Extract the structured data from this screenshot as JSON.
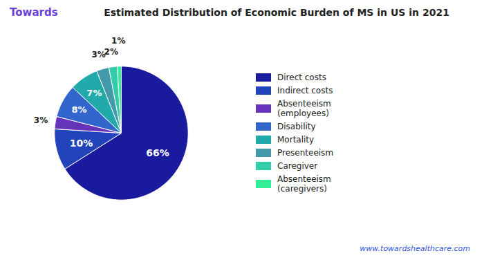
{
  "chart_data": {
    "type": "pie",
    "title": "Estimated Distribution of Economic Burden of MS in US in 2021",
    "categories": [
      "Direct costs",
      "Indirect costs",
      "Absenteeism\n(employees)",
      "Disability",
      "Mortality",
      "Presenteeism",
      "Caregiver",
      "Absenteeism\n(caregivers)"
    ],
    "values": [
      66,
      10,
      3,
      8,
      7,
      3,
      2,
      1
    ],
    "value_labels": [
      "66%",
      "10%",
      "3%",
      "8%",
      "7%",
      "3%",
      "2%",
      "1%"
    ],
    "colors": [
      "#1a1a9e",
      "#2244bb",
      "#6633bb",
      "#3366cc",
      "#22aaaa",
      "#4499aa",
      "#33ccaa",
      "#33ee99"
    ],
    "data_labels": true,
    "legend": "right",
    "annotations": [
      "Towards",
      "www.towardshealthcare.com"
    ]
  }
}
